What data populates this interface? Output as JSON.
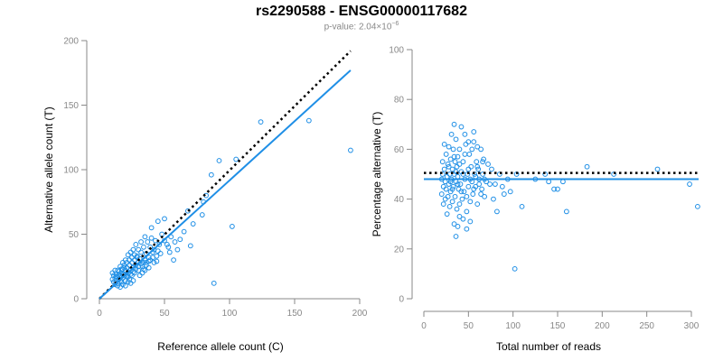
{
  "title": "rs2290588 - ENSG00000117682",
  "subtitle": {
    "prefix": "p-value: 2.04×10",
    "exponent": "−6"
  },
  "colors": {
    "points": "#1f8fe6",
    "fit": "#1f8fe6",
    "reference": "#000000",
    "axis": "#888888"
  },
  "chart_data": [
    {
      "type": "scatter",
      "xlabel": "Reference allele count (C)",
      "ylabel": "Alternative allele count (T)",
      "xlim": [
        0,
        200
      ],
      "ylim": [
        0,
        200
      ],
      "xticks": [
        0,
        50,
        100,
        150,
        200
      ],
      "yticks": [
        0,
        50,
        100,
        150,
        200
      ],
      "reference_line": {
        "style": "dotted",
        "from": [
          0,
          0
        ],
        "to": [
          193,
          192
        ]
      },
      "fit_line": {
        "style": "solid",
        "from": [
          0,
          0
        ],
        "to": [
          193,
          177
        ]
      },
      "points": [
        [
          193,
          115
        ],
        [
          161,
          138
        ],
        [
          124,
          137
        ],
        [
          105,
          108
        ],
        [
          102,
          56
        ],
        [
          92,
          107
        ],
        [
          88,
          12
        ],
        [
          86,
          96
        ],
        [
          82,
          80
        ],
        [
          80,
          75
        ],
        [
          79,
          65
        ],
        [
          70,
          41
        ],
        [
          68,
          68
        ],
        [
          60,
          38
        ],
        [
          57,
          30
        ],
        [
          55,
          48
        ],
        [
          53,
          40
        ],
        [
          50,
          45
        ],
        [
          48,
          50
        ],
        [
          46,
          42
        ],
        [
          45,
          37
        ],
        [
          44,
          33
        ],
        [
          43,
          45
        ],
        [
          42,
          38
        ],
        [
          41,
          36
        ],
        [
          40,
          47
        ],
        [
          39,
          40
        ],
        [
          38,
          32
        ],
        [
          37,
          44
        ],
        [
          36,
          35
        ],
        [
          35,
          30
        ],
        [
          34,
          28
        ],
        [
          33,
          25
        ],
        [
          32,
          36
        ],
        [
          31,
          31
        ],
        [
          30,
          28
        ],
        [
          30,
          22
        ],
        [
          29,
          33
        ],
        [
          28,
          26
        ],
        [
          27,
          30
        ],
        [
          27,
          20
        ],
        [
          26,
          24
        ],
        [
          25,
          28
        ],
        [
          25,
          18
        ],
        [
          24,
          22
        ],
        [
          23,
          26
        ],
        [
          23,
          15
        ],
        [
          22,
          20
        ],
        [
          21,
          24
        ],
        [
          21,
          17
        ],
        [
          20,
          22
        ],
        [
          20,
          14
        ],
        [
          19,
          19
        ],
        [
          19,
          26
        ],
        [
          18,
          16
        ],
        [
          18,
          23
        ],
        [
          17,
          20
        ],
        [
          17,
          13
        ],
        [
          16,
          18
        ],
        [
          16,
          25
        ],
        [
          15,
          15
        ],
        [
          15,
          21
        ],
        [
          14,
          17
        ],
        [
          14,
          12
        ],
        [
          13,
          14
        ],
        [
          13,
          19
        ],
        [
          12,
          16
        ],
        [
          12,
          22
        ],
        [
          11,
          13
        ],
        [
          11,
          18
        ],
        [
          10,
          15
        ],
        [
          10,
          20
        ],
        [
          28,
          42
        ],
        [
          26,
          38
        ],
        [
          24,
          36
        ],
        [
          22,
          34
        ],
        [
          20,
          30
        ],
        [
          18,
          28
        ],
        [
          32,
          44
        ],
        [
          35,
          48
        ],
        [
          40,
          55
        ],
        [
          45,
          60
        ],
        [
          50,
          62
        ],
        [
          31,
          18
        ],
        [
          33,
          20
        ],
        [
          35,
          22
        ],
        [
          38,
          24
        ],
        [
          42,
          28
        ],
        [
          26,
          14
        ],
        [
          24,
          12
        ],
        [
          22,
          13
        ],
        [
          20,
          10
        ],
        [
          18,
          11
        ],
        [
          16,
          9
        ],
        [
          14,
          10
        ],
        [
          30,
          38
        ],
        [
          34,
          40
        ],
        [
          29,
          32
        ],
        [
          27,
          34
        ],
        [
          23,
          30
        ],
        [
          21,
          28
        ],
        [
          19,
          24
        ],
        [
          17,
          23
        ],
        [
          15,
          19
        ],
        [
          13,
          17
        ],
        [
          12,
          11
        ],
        [
          25,
          32
        ],
        [
          36,
          28
        ],
        [
          39,
          30
        ],
        [
          41,
          32
        ],
        [
          44,
          29
        ],
        [
          47,
          35
        ],
        [
          52,
          42
        ],
        [
          54,
          36
        ],
        [
          58,
          44
        ],
        [
          62,
          46
        ],
        [
          65,
          52
        ],
        [
          72,
          58
        ],
        [
          14,
          22
        ],
        [
          16,
          14
        ],
        [
          18,
          19
        ],
        [
          20,
          18
        ],
        [
          22,
          17
        ],
        [
          24,
          19
        ],
        [
          26,
          21
        ],
        [
          28,
          23
        ],
        [
          30,
          25
        ],
        [
          32,
          27
        ],
        [
          34,
          23
        ],
        [
          36,
          26
        ],
        [
          38,
          29
        ]
      ]
    },
    {
      "type": "scatter",
      "xlabel": "Total number of reads",
      "ylabel": "Percentage alternative (T)",
      "xlim": [
        0,
        300
      ],
      "ylim": [
        0,
        100
      ],
      "xticks": [
        0,
        50,
        100,
        150,
        200,
        250,
        300
      ],
      "yticks": [
        0,
        20,
        40,
        60,
        80,
        100
      ],
      "reference_line": {
        "style": "dotted",
        "y": 50.5
      },
      "fit_line": {
        "style": "solid",
        "y": 48
      },
      "points": [
        [
          307,
          37
        ],
        [
          298,
          46
        ],
        [
          262,
          52
        ],
        [
          213,
          50
        ],
        [
          183,
          53
        ],
        [
          160,
          35
        ],
        [
          156,
          47
        ],
        [
          150,
          44
        ],
        [
          146,
          44
        ],
        [
          140,
          47
        ],
        [
          136,
          50
        ],
        [
          125,
          48
        ],
        [
          110,
          37
        ],
        [
          104,
          50
        ],
        [
          102,
          12
        ],
        [
          97,
          43
        ],
        [
          94,
          48
        ],
        [
          90,
          42
        ],
        [
          88,
          45
        ],
        [
          85,
          50
        ],
        [
          82,
          35
        ],
        [
          80,
          46
        ],
        [
          78,
          40
        ],
        [
          76,
          52
        ],
        [
          74,
          46
        ],
        [
          72,
          54
        ],
        [
          70,
          47
        ],
        [
          68,
          41
        ],
        [
          67,
          56
        ],
        [
          66,
          50
        ],
        [
          65,
          44
        ],
        [
          64,
          60
        ],
        [
          62,
          48
        ],
        [
          61,
          52
        ],
        [
          60,
          38
        ],
        [
          59,
          55
        ],
        [
          58,
          45
        ],
        [
          57,
          50
        ],
        [
          56,
          63
        ],
        [
          55,
          42
        ],
        [
          54,
          47
        ],
        [
          53,
          53
        ],
        [
          52,
          39
        ],
        [
          51,
          58
        ],
        [
          50,
          45
        ],
        [
          49,
          50
        ],
        [
          48,
          35
        ],
        [
          47,
          62
        ],
        [
          46,
          48
        ],
        [
          45,
          43
        ],
        [
          44,
          55
        ],
        [
          43,
          40
        ],
        [
          42,
          51
        ],
        [
          41,
          46
        ],
        [
          40,
          60
        ],
        [
          40,
          38
        ],
        [
          39,
          44
        ],
        [
          38,
          57
        ],
        [
          38,
          49
        ],
        [
          37,
          36
        ],
        [
          37,
          53
        ],
        [
          36,
          47
        ],
        [
          36,
          64
        ],
        [
          35,
          41
        ],
        [
          35,
          55
        ],
        [
          34,
          50
        ],
        [
          34,
          30
        ],
        [
          33,
          45
        ],
        [
          33,
          60
        ],
        [
          32,
          39
        ],
        [
          32,
          52
        ],
        [
          31,
          48
        ],
        [
          31,
          66
        ],
        [
          30,
          43
        ],
        [
          30,
          56
        ],
        [
          29,
          37
        ],
        [
          29,
          50
        ],
        [
          28,
          46
        ],
        [
          28,
          61
        ],
        [
          27,
          41
        ],
        [
          27,
          54
        ],
        [
          26,
          49
        ],
        [
          26,
          34
        ],
        [
          25,
          44
        ],
        [
          25,
          58
        ],
        [
          24,
          47
        ],
        [
          24,
          40
        ],
        [
          23,
          52
        ],
        [
          23,
          62
        ],
        [
          22,
          45
        ],
        [
          22,
          38
        ],
        [
          21,
          50
        ],
        [
          21,
          55
        ],
        [
          20,
          42
        ],
        [
          20,
          48
        ],
        [
          36,
          25
        ],
        [
          38,
          29
        ],
        [
          44,
          32
        ],
        [
          48,
          28
        ],
        [
          42,
          69
        ],
        [
          46,
          66
        ],
        [
          50,
          63
        ],
        [
          56,
          67
        ],
        [
          60,
          61
        ],
        [
          40,
          33
        ],
        [
          52,
          31
        ],
        [
          34,
          70
        ],
        [
          28,
          53
        ],
        [
          30,
          47
        ],
        [
          32,
          44
        ],
        [
          34,
          57
        ],
        [
          36,
          51
        ],
        [
          38,
          46
        ],
        [
          40,
          54
        ],
        [
          42,
          43
        ],
        [
          44,
          50
        ],
        [
          46,
          58
        ],
        [
          48,
          41
        ],
        [
          50,
          52
        ],
        [
          52,
          48
        ],
        [
          54,
          60
        ],
        [
          56,
          44
        ],
        [
          58,
          49
        ],
        [
          60,
          53
        ],
        [
          62,
          46
        ],
        [
          64,
          42
        ],
        [
          66,
          55
        ],
        [
          68,
          48
        ]
      ]
    }
  ]
}
